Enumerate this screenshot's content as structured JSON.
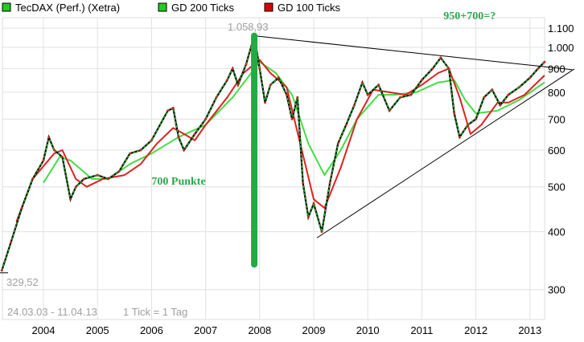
{
  "chart_data": {
    "type": "line",
    "title": "",
    "legend": {
      "placement": "top",
      "entries": [
        {
          "label": "TecDAX (Perf.) (Xetra)",
          "color": "#22cc22"
        },
        {
          "label": "GD 200 Ticks",
          "color": "#22cc22"
        },
        {
          "label": "GD 100 Ticks",
          "color": "#dd0000"
        }
      ]
    },
    "x_axis": {
      "ticks": [
        "2004",
        "2005",
        "2006",
        "2007",
        "2008",
        "2009",
        "2010",
        "2011",
        "2012",
        "2013"
      ],
      "range": [
        2003.23,
        2013.27
      ]
    },
    "y_axis": {
      "scale": "log",
      "position": "right",
      "ticks": [
        300,
        400,
        500,
        600,
        700,
        800,
        900,
        1000,
        1100
      ],
      "tick_labels": [
        "300",
        "400",
        "500",
        "600",
        "700",
        "800",
        "900",
        "1.000",
        "1.100"
      ],
      "range": [
        250,
        1200
      ]
    },
    "grid": true,
    "high_label": "1.058,93",
    "low_label": "329,52",
    "period_label": "24.03.03 - 11.04.13",
    "tick_label": "1 Tick = 1 Tag",
    "series": [
      {
        "name": "TecDAX (Perf.) (Xetra)",
        "color": "#22cc22",
        "points": [
          [
            2003.23,
            330
          ],
          [
            2003.4,
            380
          ],
          [
            2003.6,
            450
          ],
          [
            2003.8,
            520
          ],
          [
            2004.0,
            570
          ],
          [
            2004.1,
            640
          ],
          [
            2004.2,
            600
          ],
          [
            2004.35,
            580
          ],
          [
            2004.5,
            470
          ],
          [
            2004.6,
            500
          ],
          [
            2004.75,
            520
          ],
          [
            2005.0,
            530
          ],
          [
            2005.2,
            520
          ],
          [
            2005.4,
            540
          ],
          [
            2005.6,
            590
          ],
          [
            2005.8,
            600
          ],
          [
            2006.0,
            630
          ],
          [
            2006.3,
            730
          ],
          [
            2006.4,
            740
          ],
          [
            2006.5,
            640
          ],
          [
            2006.6,
            600
          ],
          [
            2006.8,
            650
          ],
          [
            2007.0,
            700
          ],
          [
            2007.2,
            780
          ],
          [
            2007.4,
            850
          ],
          [
            2007.5,
            900
          ],
          [
            2007.6,
            830
          ],
          [
            2007.75,
            920
          ],
          [
            2007.9,
            1059
          ],
          [
            2008.0,
            900
          ],
          [
            2008.1,
            760
          ],
          [
            2008.2,
            830
          ],
          [
            2008.35,
            860
          ],
          [
            2008.5,
            790
          ],
          [
            2008.6,
            700
          ],
          [
            2008.7,
            780
          ],
          [
            2008.8,
            510
          ],
          [
            2008.9,
            430
          ],
          [
            2009.0,
            460
          ],
          [
            2009.15,
            400
          ],
          [
            2009.3,
            510
          ],
          [
            2009.45,
            620
          ],
          [
            2009.6,
            680
          ],
          [
            2009.75,
            750
          ],
          [
            2009.9,
            840
          ],
          [
            2010.0,
            790
          ],
          [
            2010.2,
            830
          ],
          [
            2010.4,
            730
          ],
          [
            2010.6,
            780
          ],
          [
            2010.8,
            790
          ],
          [
            2011.0,
            850
          ],
          [
            2011.2,
            900
          ],
          [
            2011.35,
            950
          ],
          [
            2011.5,
            900
          ],
          [
            2011.6,
            720
          ],
          [
            2011.7,
            640
          ],
          [
            2011.85,
            680
          ],
          [
            2012.0,
            700
          ],
          [
            2012.15,
            780
          ],
          [
            2012.3,
            810
          ],
          [
            2012.45,
            750
          ],
          [
            2012.6,
            790
          ],
          [
            2012.8,
            820
          ],
          [
            2013.0,
            860
          ],
          [
            2013.15,
            900
          ],
          [
            2013.27,
            930
          ]
        ]
      },
      {
        "name": "GD 100 Ticks",
        "color": "#dd2222",
        "points": [
          [
            2003.5,
            420
          ],
          [
            2003.8,
            520
          ],
          [
            2004.2,
            590
          ],
          [
            2004.35,
            600
          ],
          [
            2004.6,
            520
          ],
          [
            2004.8,
            500
          ],
          [
            2005.1,
            520
          ],
          [
            2005.5,
            530
          ],
          [
            2005.8,
            560
          ],
          [
            2006.1,
            620
          ],
          [
            2006.4,
            670
          ],
          [
            2006.6,
            650
          ],
          [
            2006.8,
            630
          ],
          [
            2007.0,
            680
          ],
          [
            2007.4,
            780
          ],
          [
            2007.7,
            880
          ],
          [
            2008.0,
            940
          ],
          [
            2008.2,
            880
          ],
          [
            2008.5,
            820
          ],
          [
            2008.75,
            620
          ],
          [
            2009.0,
            470
          ],
          [
            2009.2,
            450
          ],
          [
            2009.5,
            550
          ],
          [
            2009.8,
            700
          ],
          [
            2010.1,
            810
          ],
          [
            2010.4,
            800
          ],
          [
            2010.7,
            790
          ],
          [
            2011.0,
            830
          ],
          [
            2011.3,
            880
          ],
          [
            2011.5,
            900
          ],
          [
            2011.7,
            780
          ],
          [
            2011.9,
            650
          ],
          [
            2012.1,
            680
          ],
          [
            2012.4,
            760
          ],
          [
            2012.6,
            760
          ],
          [
            2012.9,
            790
          ],
          [
            2013.27,
            870
          ]
        ]
      },
      {
        "name": "GD 200 Ticks",
        "color": "#44dd44",
        "points": [
          [
            2004.0,
            510
          ],
          [
            2004.3,
            580
          ],
          [
            2004.5,
            570
          ],
          [
            2004.9,
            520
          ],
          [
            2005.2,
            520
          ],
          [
            2005.6,
            560
          ],
          [
            2006.0,
            590
          ],
          [
            2006.5,
            640
          ],
          [
            2007.0,
            680
          ],
          [
            2007.5,
            780
          ],
          [
            2008.0,
            930
          ],
          [
            2008.3,
            880
          ],
          [
            2008.6,
            790
          ],
          [
            2008.9,
            620
          ],
          [
            2009.2,
            530
          ],
          [
            2009.5,
            600
          ],
          [
            2009.8,
            700
          ],
          [
            2010.2,
            790
          ],
          [
            2010.5,
            790
          ],
          [
            2010.9,
            800
          ],
          [
            2011.3,
            840
          ],
          [
            2011.6,
            850
          ],
          [
            2011.8,
            770
          ],
          [
            2012.0,
            720
          ],
          [
            2012.4,
            730
          ],
          [
            2012.8,
            770
          ],
          [
            2013.27,
            840
          ]
        ]
      }
    ],
    "trendlines": [
      {
        "color": "#000000",
        "from": [
          2007.9,
          1059
        ],
        "to": [
          2013.78,
          895
        ]
      },
      {
        "color": "#000000",
        "from": [
          2009.06,
          388
        ],
        "to": [
          2013.82,
          898
        ]
      }
    ],
    "annotations": [
      {
        "text": "700 Punkte",
        "at": [
          2006.0,
          505
        ],
        "color": "#2aa84a"
      },
      {
        "text": "950+700=?",
        "at": [
          2011.4,
          1150
        ],
        "color": "#2aa84a"
      },
      {
        "type": "vertical-bar",
        "color": "#22aa44",
        "from": [
          2007.9,
          1059
        ],
        "to": [
          2007.9,
          340
        ]
      }
    ]
  }
}
